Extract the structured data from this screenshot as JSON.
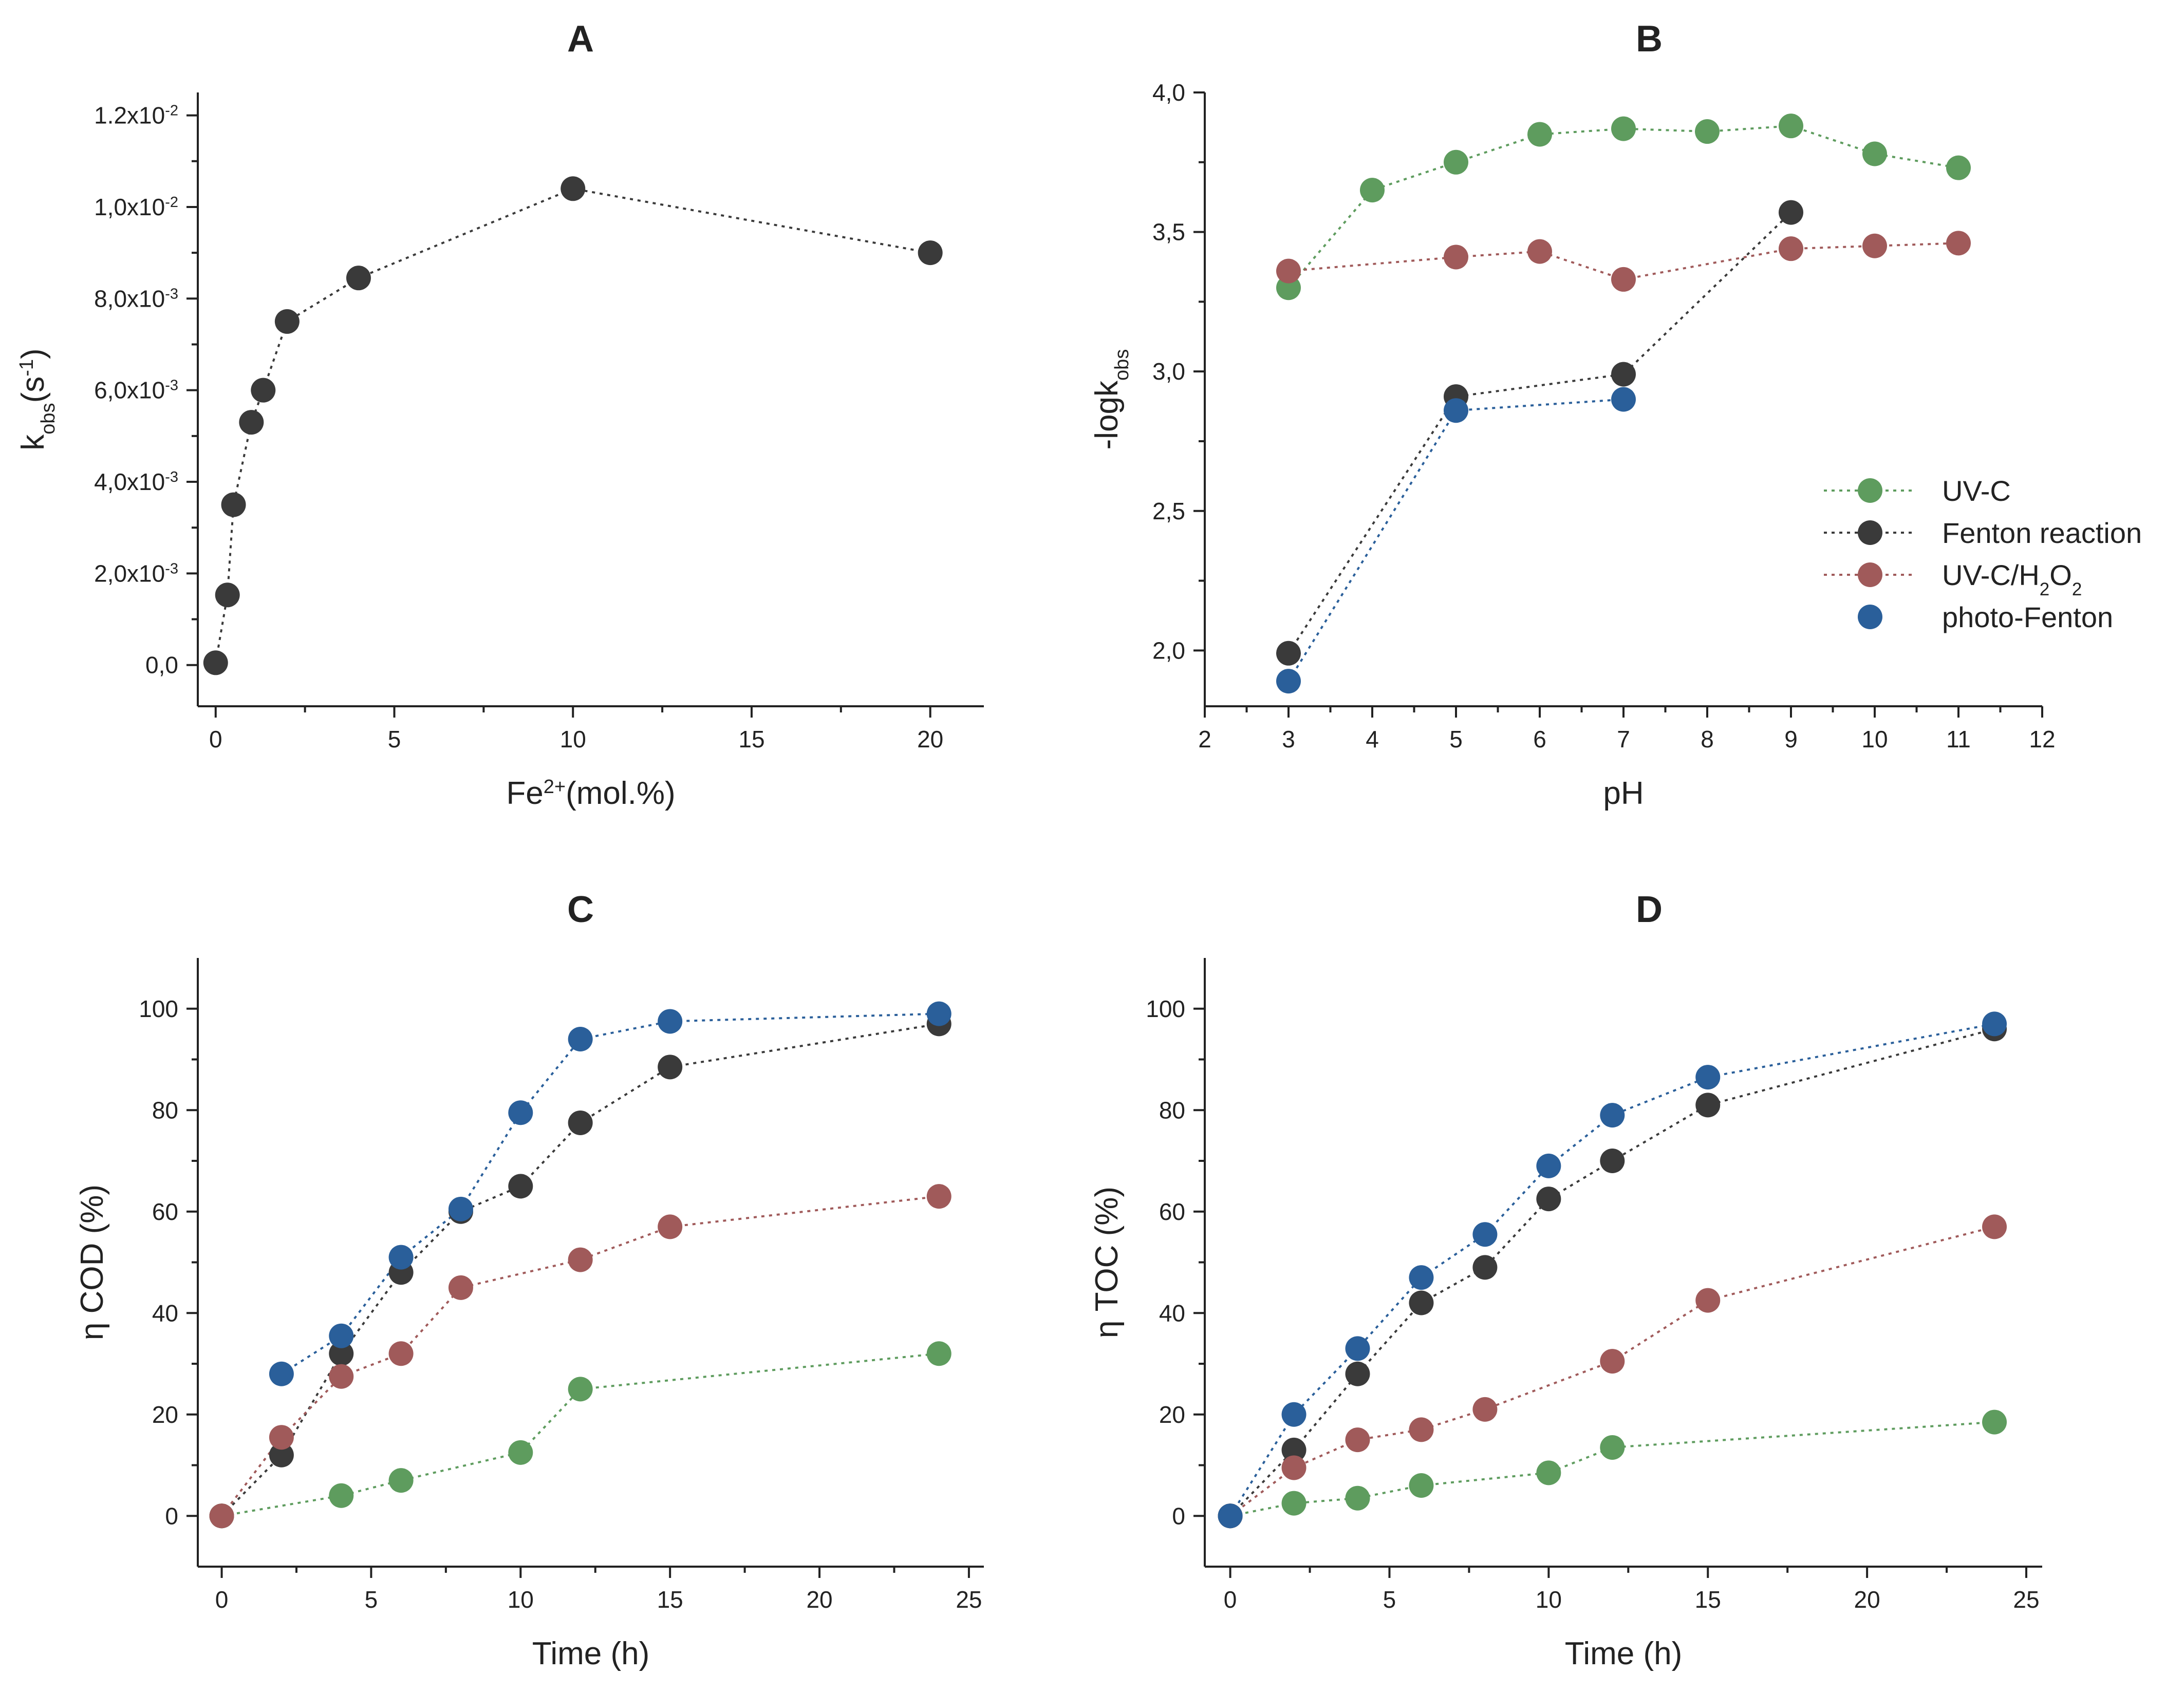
{
  "chart_data": [
    {
      "panel": "A",
      "type": "scatter",
      "title": "A",
      "xlabel": "Fe2+(mol.%)",
      "ylabel": "kobs(s-1)",
      "xlim": [
        -0.5,
        21.5
      ],
      "ylim": [
        -0.0009,
        0.0125
      ],
      "xticks": [
        0,
        5,
        10,
        15,
        20
      ],
      "xtick_labels": [
        "0",
        "5",
        "10",
        "15",
        "20"
      ],
      "yticks": [
        0,
        0.002,
        0.004,
        0.006,
        0.008,
        0.01,
        0.012
      ],
      "ytick_labels": [
        {
          "m": "0,0",
          "e": ""
        },
        {
          "m": "2,0x10",
          "e": "-3"
        },
        {
          "m": "4,0x10",
          "e": "-3"
        },
        {
          "m": "6,0x10",
          "e": "-3"
        },
        {
          "m": "8,0x10",
          "e": "-3"
        },
        {
          "m": "1,0x10",
          "e": "-2"
        },
        {
          "m": "1.2x10",
          "e": "-2"
        }
      ],
      "grid": false,
      "series": [
        {
          "name": "Fenton reaction",
          "color": "#3a3a3a",
          "x": [
            0,
            0.33,
            0.5,
            1,
            1.33,
            2,
            4,
            10,
            20
          ],
          "y": [
            5e-05,
            0.00153,
            0.0035,
            0.0053,
            0.006,
            0.0075,
            0.00845,
            0.0104,
            0.009
          ]
        }
      ]
    },
    {
      "panel": "B",
      "type": "scatter",
      "title": "B",
      "xlabel": "pH",
      "ylabel": "-logkobs",
      "xlim": [
        2,
        12
      ],
      "ylim": [
        1.8,
        4.0
      ],
      "xticks": [
        2,
        3,
        4,
        5,
        6,
        7,
        8,
        9,
        10,
        11,
        12
      ],
      "xtick_labels": [
        "2",
        "3",
        "4",
        "5",
        "6",
        "7",
        "8",
        "9",
        "10",
        "11",
        "12"
      ],
      "yticks": [
        2.0,
        2.5,
        3.0,
        3.5,
        4.0
      ],
      "ytick_labels": [
        {
          "m": "2,0",
          "e": ""
        },
        {
          "m": "2,5",
          "e": ""
        },
        {
          "m": "3,0",
          "e": ""
        },
        {
          "m": "3,5",
          "e": ""
        },
        {
          "m": "4,0",
          "e": ""
        }
      ],
      "grid": false,
      "legend": "right",
      "series": [
        {
          "name": "UV-C",
          "color": "#5e9c5e",
          "x": [
            3,
            4,
            5,
            6,
            7,
            8,
            9,
            10,
            11
          ],
          "y": [
            3.3,
            3.65,
            3.75,
            3.85,
            3.87,
            3.86,
            3.88,
            3.78,
            3.73
          ]
        },
        {
          "name": "Fenton reaction",
          "color": "#3a3a3a",
          "x": [
            3,
            5,
            7,
            9
          ],
          "y": [
            1.99,
            2.91,
            2.99,
            3.57
          ]
        },
        {
          "name": "UV-C/H2O2",
          "color": "#a05a5a",
          "x": [
            3,
            5,
            6,
            7,
            9,
            10,
            11
          ],
          "y": [
            3.36,
            3.41,
            3.43,
            3.33,
            3.44,
            3.45,
            3.46
          ]
        },
        {
          "name": "photo-Fenton",
          "color": "#2a5f9a",
          "x": [
            3,
            5,
            7
          ],
          "y": [
            1.89,
            2.86,
            2.9
          ]
        }
      ]
    },
    {
      "panel": "C",
      "type": "scatter",
      "title": "C",
      "xlabel": "Time (h)",
      "ylabel": "η COD (%)",
      "xlim": [
        -0.8,
        25.5
      ],
      "ylim": [
        -10,
        110
      ],
      "xticks": [
        0,
        5,
        10,
        15,
        20,
        25
      ],
      "xtick_labels": [
        "0",
        "5",
        "10",
        "15",
        "20",
        "25"
      ],
      "yticks": [
        0,
        20,
        40,
        60,
        80,
        100
      ],
      "ytick_labels": [
        {
          "m": "0",
          "e": ""
        },
        {
          "m": "20",
          "e": ""
        },
        {
          "m": "40",
          "e": ""
        },
        {
          "m": "60",
          "e": ""
        },
        {
          "m": "80",
          "e": ""
        },
        {
          "m": "100",
          "e": ""
        }
      ],
      "grid": false,
      "series": [
        {
          "name": "UV-C",
          "color": "#5e9c5e",
          "x": [
            0,
            4,
            6,
            10,
            12,
            24
          ],
          "y": [
            0,
            4,
            7,
            12.5,
            25,
            32
          ]
        },
        {
          "name": "Fenton reaction",
          "color": "#3a3a3a",
          "x": [
            0,
            2,
            4,
            6,
            8,
            10,
            12,
            15,
            24
          ],
          "y": [
            0,
            12,
            32,
            48,
            60,
            65,
            77.5,
            88.5,
            97
          ]
        },
        {
          "name": "UV-C/H2O2",
          "color": "#a05a5a",
          "x": [
            0,
            2,
            4,
            6,
            8,
            12,
            15,
            24
          ],
          "y": [
            0,
            15.5,
            27.5,
            32,
            45,
            50.5,
            57,
            63
          ]
        },
        {
          "name": "photo-Fenton",
          "color": "#2a5f9a",
          "x": [
            2,
            4,
            6,
            8,
            10,
            12,
            15,
            24
          ],
          "y": [
            28,
            35.5,
            51,
            60.5,
            79.5,
            94,
            97.5,
            99
          ]
        }
      ]
    },
    {
      "panel": "D",
      "type": "scatter",
      "title": "D",
      "xlabel": "Time (h)",
      "ylabel": "η TOC (%)",
      "xlim": [
        -0.8,
        25.5
      ],
      "ylim": [
        -10,
        110
      ],
      "xticks": [
        0,
        5,
        10,
        15,
        20,
        25
      ],
      "xtick_labels": [
        "0",
        "5",
        "10",
        "15",
        "20",
        "25"
      ],
      "yticks": [
        0,
        20,
        40,
        60,
        80,
        100
      ],
      "ytick_labels": [
        {
          "m": "0",
          "e": ""
        },
        {
          "m": "20",
          "e": ""
        },
        {
          "m": "40",
          "e": ""
        },
        {
          "m": "60",
          "e": ""
        },
        {
          "m": "80",
          "e": ""
        },
        {
          "m": "100",
          "e": ""
        }
      ],
      "grid": false,
      "series": [
        {
          "name": "UV-C",
          "color": "#5e9c5e",
          "x": [
            0,
            2,
            4,
            6,
            10,
            12,
            24
          ],
          "y": [
            0,
            2.5,
            3.5,
            6,
            8.5,
            13.5,
            18.5
          ]
        },
        {
          "name": "Fenton reaction",
          "color": "#3a3a3a",
          "x": [
            0,
            2,
            4,
            6,
            8,
            10,
            12,
            15,
            24
          ],
          "y": [
            0,
            13,
            28,
            42,
            49,
            62.5,
            70,
            81,
            96
          ]
        },
        {
          "name": "UV-C/H2O2",
          "color": "#a05a5a",
          "x": [
            0,
            2,
            4,
            6,
            8,
            12,
            15,
            24
          ],
          "y": [
            0,
            9.5,
            15,
            17,
            21,
            30.5,
            42.5,
            57
          ]
        },
        {
          "name": "photo-Fenton",
          "color": "#2a5f9a",
          "x": [
            0,
            2,
            4,
            6,
            8,
            10,
            12,
            15,
            24
          ],
          "y": [
            0,
            20,
            33,
            47,
            55.5,
            69,
            79,
            86.5,
            97
          ]
        }
      ]
    }
  ],
  "legend": {
    "items": [
      {
        "label": "UV-C",
        "color": "#5e9c5e"
      },
      {
        "label": "Fenton reaction",
        "color": "#3a3a3a"
      },
      {
        "label": "UV-C/H2O2",
        "color": "#a05a5a"
      },
      {
        "label": "photo-Fenton",
        "color": "#2a5f9a"
      }
    ]
  }
}
